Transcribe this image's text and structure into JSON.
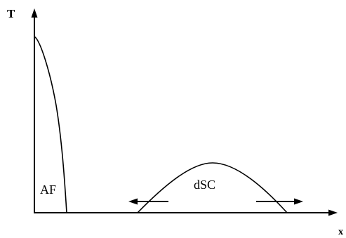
{
  "axes": {
    "y_label": "T",
    "x_label": "x"
  },
  "regions": {
    "af_label": "AF",
    "dsc_label": "dSC"
  }
}
